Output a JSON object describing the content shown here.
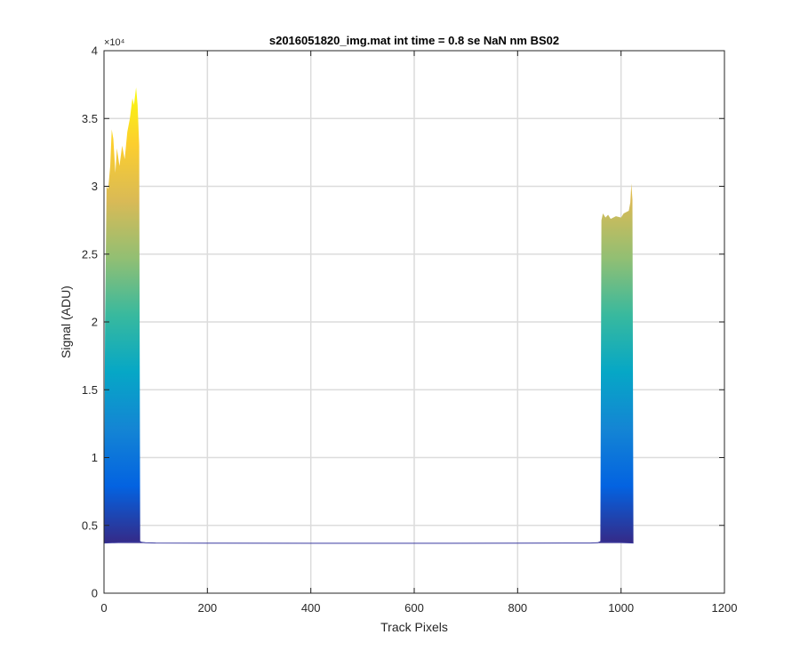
{
  "chart_data": {
    "type": "area",
    "title": "s2016051820_img.mat int time = 0.8 se  NaN nm BS02",
    "xlabel": "Track Pixels",
    "ylabel": "Signal (ADU)",
    "xlim": [
      0,
      1200
    ],
    "ylim": [
      0,
      40000
    ],
    "x_ticks": [
      0,
      200,
      400,
      600,
      800,
      1000,
      1200
    ],
    "x_tick_labels": [
      "0",
      "200",
      "400",
      "600",
      "800",
      "1000",
      "1200"
    ],
    "y_ticks": [
      0,
      5000,
      10000,
      15000,
      20000,
      25000,
      30000,
      35000,
      40000
    ],
    "y_tick_labels": [
      "0",
      "0.5",
      "1",
      "1.5",
      "2",
      "2.5",
      "3",
      "3.5",
      "4"
    ],
    "y_exponent": "×10⁴",
    "grid": true,
    "baseline": 3700,
    "colormap": [
      "#352a87",
      "#0363e1",
      "#1485d4",
      "#06a7c6",
      "#38b99e",
      "#92bf73",
      "#d9ba56",
      "#fcce2e",
      "#f9fb0e"
    ],
    "envelope": {
      "x": [
        0,
        2,
        5,
        8,
        12,
        15,
        18,
        22,
        25,
        30,
        35,
        40,
        45,
        50,
        55,
        58,
        62,
        65,
        68,
        70,
        73,
        80,
        100,
        200,
        400,
        600,
        800,
        940,
        955,
        960,
        962,
        965,
        970,
        975,
        980,
        990,
        1000,
        1005,
        1010,
        1015,
        1018,
        1020,
        1022,
        1024
      ],
      "y": [
        3700,
        20000,
        30000,
        29800,
        31500,
        34200,
        33500,
        31000,
        32800,
        31500,
        33000,
        32000,
        34000,
        35000,
        36500,
        36000,
        37300,
        36000,
        33000,
        3800,
        3750,
        3720,
        3700,
        3690,
        3680,
        3680,
        3690,
        3700,
        3720,
        3800,
        27500,
        28000,
        27700,
        27900,
        27600,
        27800,
        27700,
        28000,
        28100,
        28200,
        28800,
        30200,
        29000,
        3700
      ]
    }
  }
}
